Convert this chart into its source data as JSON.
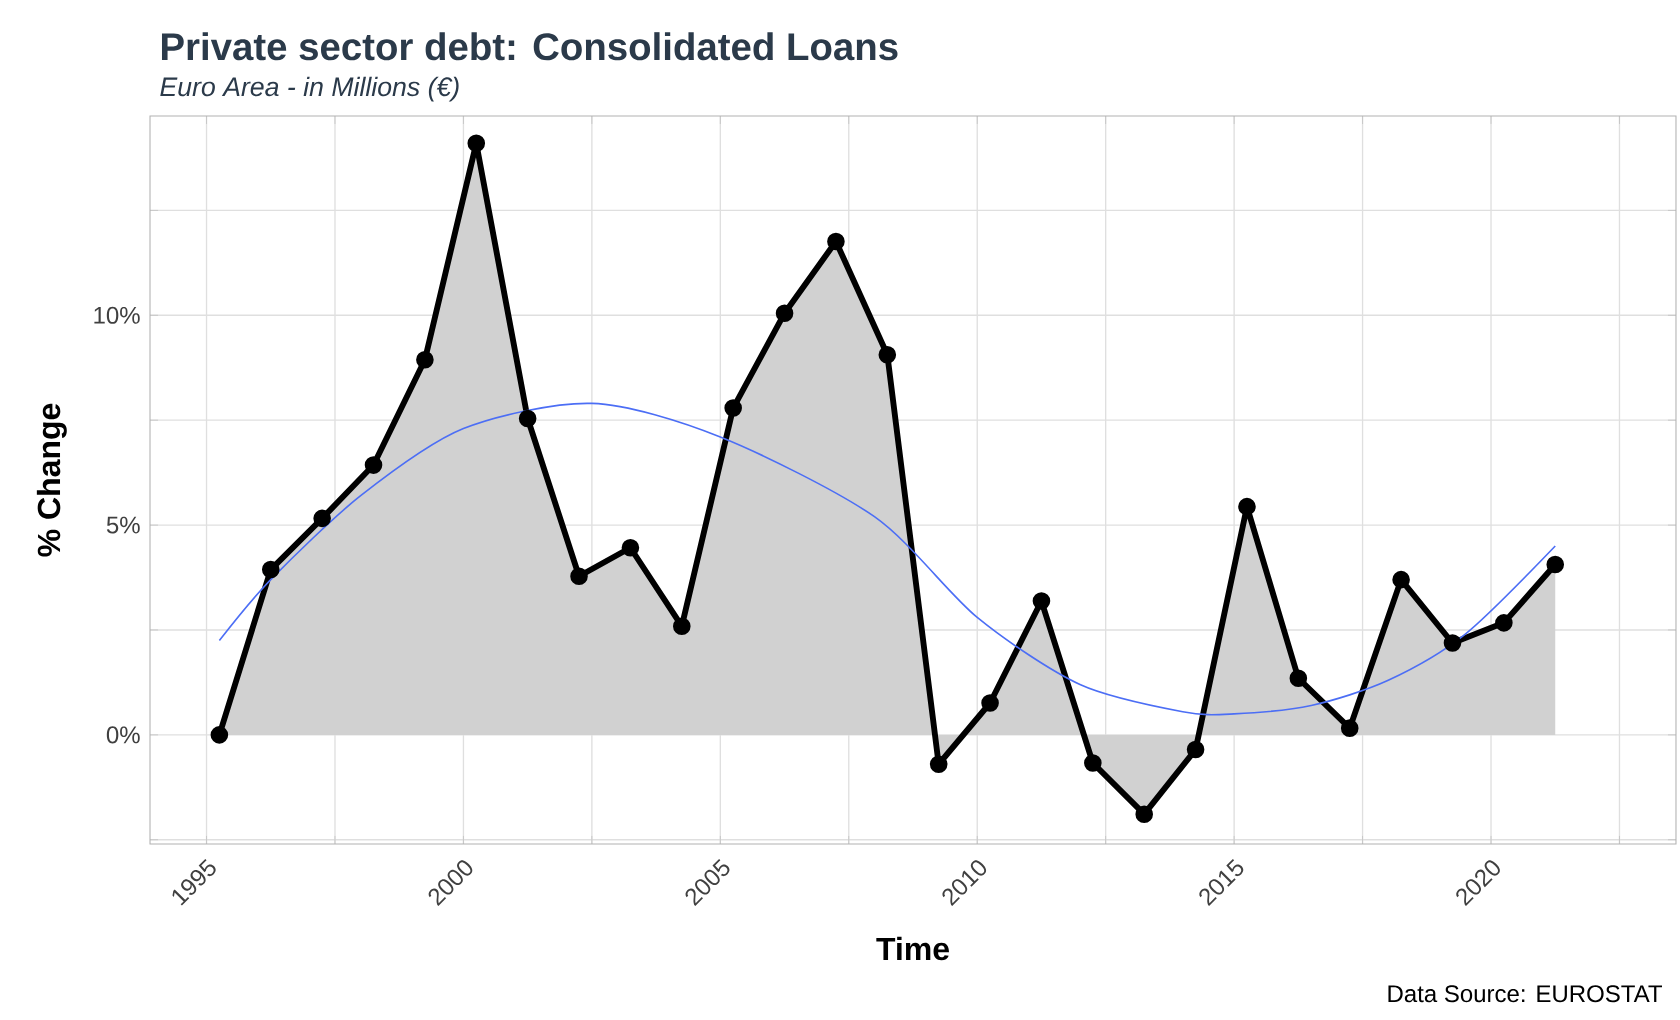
{
  "chart_data": {
    "type": "area",
    "title": "Private sector debt: Consolidated Loans",
    "subtitle": "Euro Area - in Millions (€)",
    "xlabel": "Time",
    "ylabel": "% Change",
    "annotations": [
      "Data Source: EUROSTAT"
    ],
    "x": [
      1995.25,
      1996.25,
      1997.25,
      1998.25,
      1999.25,
      2000.25,
      2001.25,
      2002.25,
      2003.25,
      2004.25,
      2005.25,
      2006.25,
      2007.25,
      2008.25,
      2009.25,
      2010.25,
      2011.25,
      2012.25,
      2013.25,
      2014.25,
      2015.25,
      2016.25,
      2017.25,
      2018.25,
      2019.25,
      2020.25,
      2021.25
    ],
    "series": [
      {
        "color": "#000000",
        "marker": "circle",
        "values": [
          0,
          3.94,
          5.16,
          6.43,
          8.94,
          14.1,
          7.54,
          3.78,
          4.46,
          2.59,
          7.79,
          10.05,
          11.76,
          9.06,
          -0.7,
          0.76,
          3.19,
          -0.67,
          -1.89,
          -0.35,
          5.44,
          1.35,
          0.16,
          3.7,
          2.19,
          2.67,
          4.06
        ]
      },
      {
        "type": "line",
        "color": "#4c6ef5",
        "x": [
          1995.25,
          1996.25,
          1998,
          2000,
          2002.5,
          2005,
          2008,
          2010,
          2012,
          2014,
          2015,
          2016.5,
          2018,
          2019.5,
          2021.25
        ],
        "values": [
          2.25,
          3.7,
          5.7,
          7.3,
          7.9,
          7.1,
          5.2,
          2.8,
          1.2,
          0.55,
          0.5,
          0.7,
          1.3,
          2.4,
          4.5
        ]
      }
    ],
    "xlim": [
      1993.9,
      2023.6
    ],
    "ylim": [
      -2.6,
      14.75
    ],
    "xticks": [
      1995,
      {
        "value": 1997.5,
        "label": null
      },
      2000,
      {
        "value": 2002.5,
        "label": null
      },
      2005,
      {
        "value": 2007.5,
        "label": null
      },
      2010,
      {
        "value": 2012.5,
        "label": null
      },
      2015,
      {
        "value": 2017.5,
        "label": null
      },
      2020,
      {
        "value": 2022.5,
        "label": null
      }
    ],
    "yticks": [
      {
        "value": -2.5,
        "label": null
      },
      {
        "value": 0,
        "label": "0%"
      },
      {
        "value": 2.5,
        "label": null
      },
      {
        "value": 5,
        "label": "5%"
      },
      {
        "value": 7.5,
        "label": null
      },
      {
        "value": 10,
        "label": "10%"
      },
      {
        "value": 12.5,
        "label": null
      }
    ],
    "grid": true
  }
}
